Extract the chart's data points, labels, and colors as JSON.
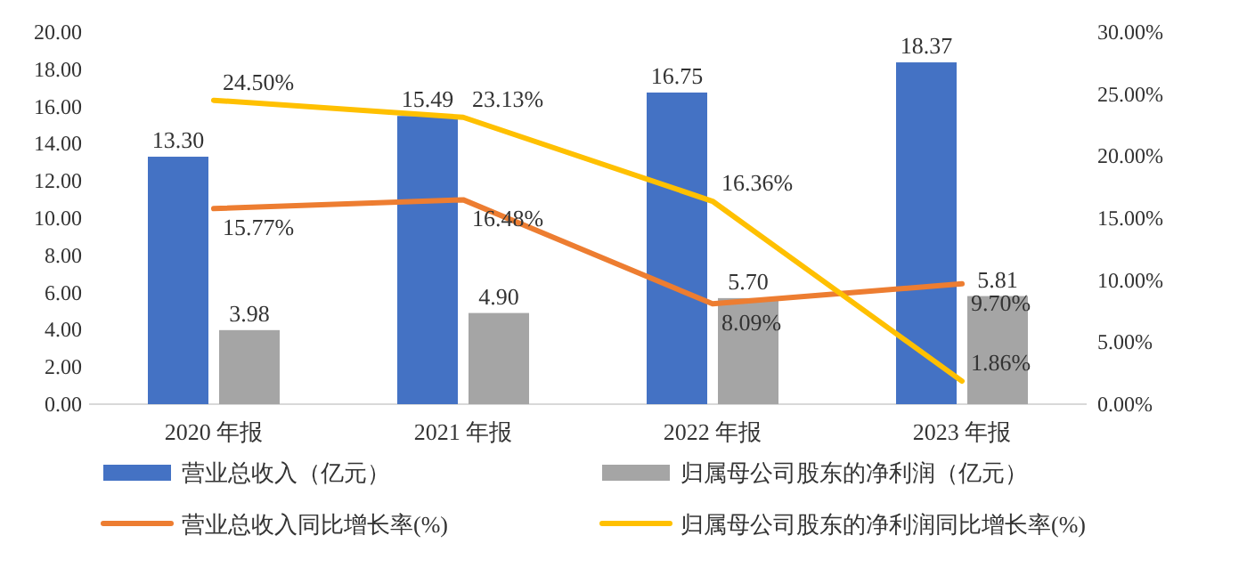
{
  "chart_data": {
    "type": "bar",
    "categories": [
      "2020 年报",
      "2021 年报",
      "2022 年报",
      "2023 年报"
    ],
    "series": [
      {
        "name": "营业总收入（亿元）",
        "color": "#4472c4",
        "values": [
          13.3,
          15.49,
          16.75,
          18.37
        ],
        "value_labels": [
          "13.30",
          "15.49",
          "16.75",
          "18.37"
        ]
      },
      {
        "name": "归属母公司股东的净利润（亿元）",
        "color": "#a5a5a5",
        "values": [
          3.98,
          4.9,
          5.7,
          5.81
        ],
        "value_labels": [
          "3.98",
          "4.90",
          "5.70",
          "5.81"
        ]
      },
      {
        "name": "营业总收入同比增长率(%)",
        "type": "line",
        "axis": "y2",
        "color": "#ed7d31",
        "values": [
          15.77,
          16.48,
          8.09,
          9.7
        ],
        "value_labels": [
          "15.77%",
          "16.48%",
          "8.09%",
          "9.70%"
        ]
      },
      {
        "name": "归属母公司股东的净利润同比增长率(%)",
        "type": "line",
        "axis": "y2",
        "color": "#ffc000",
        "values": [
          24.5,
          23.13,
          16.36,
          1.86
        ],
        "value_labels": [
          "24.50%",
          "23.13%",
          "16.36%",
          "1.86%"
        ]
      }
    ],
    "ylim": [
      0,
      20
    ],
    "yticks": [
      {
        "value": 0,
        "label": "0.00"
      },
      {
        "value": 2,
        "label": "2.00"
      },
      {
        "value": 4,
        "label": "4.00"
      },
      {
        "value": 6,
        "label": "6.00"
      },
      {
        "value": 8,
        "label": "8.00"
      },
      {
        "value": 10,
        "label": "10.00"
      },
      {
        "value": 12,
        "label": "12.00"
      },
      {
        "value": 14,
        "label": "14.00"
      },
      {
        "value": 16,
        "label": "16.00"
      },
      {
        "value": 18,
        "label": "18.00"
      },
      {
        "value": 20,
        "label": "20.00"
      }
    ],
    "y2lim": [
      0,
      30
    ],
    "y2ticks": [
      {
        "value": 0,
        "label": "0.00%"
      },
      {
        "value": 5,
        "label": "5.00%"
      },
      {
        "value": 10,
        "label": "10.00%"
      },
      {
        "value": 15,
        "label": "15.00%"
      },
      {
        "value": 20,
        "label": "20.00%"
      },
      {
        "value": 25,
        "label": "25.00%"
      },
      {
        "value": 30,
        "label": "30.00%"
      }
    ],
    "legend": "bottom",
    "marker": "none"
  }
}
